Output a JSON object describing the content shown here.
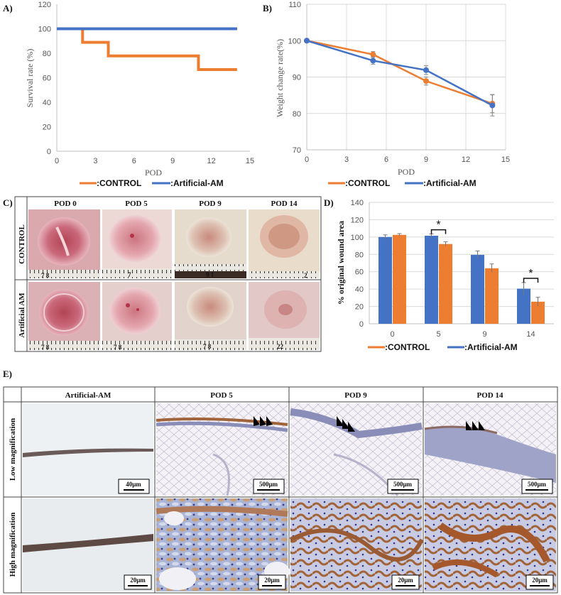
{
  "colors": {
    "control": "#ED7D31",
    "artificial": "#4472C4",
    "grid": "#d9d9d9",
    "axis": "#bfbfbf"
  },
  "chart_data": [
    {
      "panel": "A)",
      "type": "line",
      "xlabel": "POD",
      "ylabel": "Survival rate (%)",
      "xlim": [
        0,
        15
      ],
      "xticks": [
        0,
        3,
        6,
        9,
        12,
        15
      ],
      "ylim": [
        0,
        120
      ],
      "yticks": [
        0,
        20,
        40,
        60,
        80,
        100,
        120
      ],
      "grid": false,
      "legend_position": "bottom",
      "series": [
        {
          "name": ":CONTROL",
          "step": true,
          "x": [
            2,
            2,
            4,
            4,
            11,
            11,
            14
          ],
          "y": [
            100,
            88.9,
            88.9,
            77.8,
            77.8,
            66.7,
            66.7
          ],
          "x0": 0
        },
        {
          "name": ":Artificial-AM",
          "step": true,
          "x": [
            0,
            14
          ],
          "y": [
            100,
            100
          ]
        }
      ],
      "legend": [
        ":CONTROL",
        ":Artificial-AM"
      ]
    },
    {
      "panel": "B)",
      "type": "line",
      "xlabel": "POD",
      "ylabel": "Weight change rate(%)",
      "xlim": [
        0,
        15
      ],
      "xticks": [
        0,
        3,
        6,
        9,
        12,
        15
      ],
      "ylim": [
        70,
        110
      ],
      "yticks": [
        70,
        80,
        90,
        100,
        110
      ],
      "grid": true,
      "legend_position": "bottom",
      "series": [
        {
          "name": ":CONTROL",
          "x": [
            0,
            5,
            9,
            14
          ],
          "y": [
            100,
            96.2,
            88.9,
            82.7
          ],
          "err": [
            0,
            0.8,
            1.1,
            2.5
          ]
        },
        {
          "name": ":Artificial-AM",
          "x": [
            0,
            5,
            9,
            14
          ],
          "y": [
            100,
            94.5,
            91.9,
            82.2
          ],
          "err": [
            0,
            1.0,
            1.2,
            2.9
          ]
        }
      ],
      "legend": [
        ":CONTROL",
        ":Artificial-AM"
      ]
    },
    {
      "panel": "D)",
      "type": "bar",
      "ylabel": "% original wound area",
      "categories": [
        "0",
        "5",
        "9",
        "14"
      ],
      "ylim": [
        0,
        140
      ],
      "yticks": [
        0,
        20,
        40,
        60,
        80,
        100,
        120,
        140
      ],
      "grid": true,
      "legend_position": "bottom",
      "series": [
        {
          "name": ":Artificial-AM",
          "values": [
            100,
            101.5,
            79.5,
            40.5
          ],
          "err": [
            2.5,
            2,
            4.5,
            7
          ]
        },
        {
          "name": ":CONTROL",
          "values": [
            102.5,
            92,
            64,
            25.5
          ],
          "err": [
            1.5,
            2.5,
            5,
            5
          ]
        }
      ],
      "significance": [
        {
          "category": "5",
          "label": "*"
        },
        {
          "category": "14",
          "label": "*"
        }
      ],
      "legend": [
        ":CONTROL",
        ":Artificial-AM"
      ]
    }
  ],
  "panel_c": {
    "label": "C)",
    "columns": [
      "POD 0",
      "POD 5",
      "POD 9",
      "POD 14"
    ],
    "rows": [
      "CONTROL",
      "Artificial AM"
    ],
    "ruler_numbers": [
      [
        "7 8",
        "7",
        "9 1",
        "2"
      ],
      [
        "7 8",
        "7 8",
        "7 8",
        "22"
      ]
    ]
  },
  "panel_e": {
    "label": "E)",
    "columns": [
      "Artificial-AM",
      "POD 5",
      "POD 9",
      "POD 14"
    ],
    "rows": [
      "Low magnification",
      "High magnification"
    ],
    "scalebars": [
      [
        "40μm",
        "500μm",
        "500μm",
        "500μm"
      ],
      [
        "20μm",
        "20μm",
        "20μm",
        "20μm"
      ]
    ]
  }
}
